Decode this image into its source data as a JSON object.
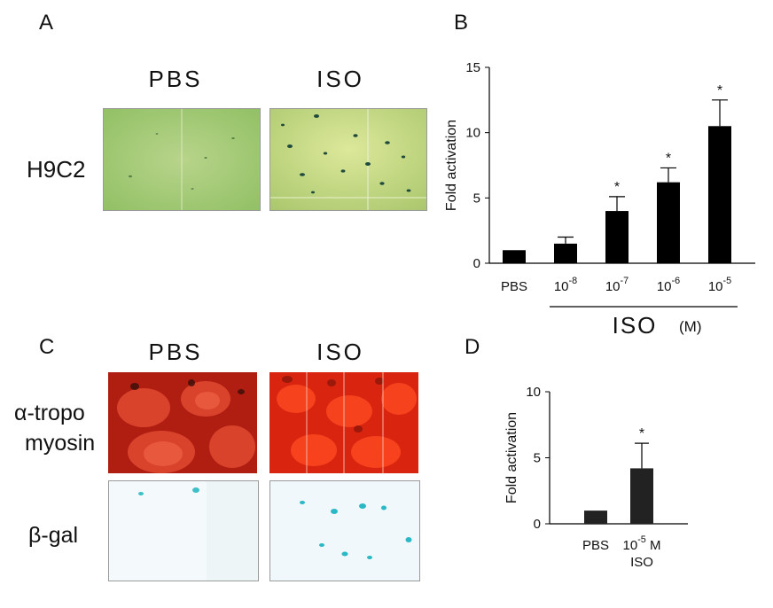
{
  "panels": {
    "A": {
      "letter": "A",
      "columns": [
        "PBS",
        "ISO"
      ],
      "row_label": "H9C2"
    },
    "B": {
      "letter": "B"
    },
    "C": {
      "letter": "C",
      "columns": [
        "PBS",
        "ISO"
      ],
      "row_labels": [
        "α-tropo",
        "myosin",
        "β-gal"
      ]
    },
    "D": {
      "letter": "D"
    }
  },
  "chart_data": [
    {
      "id": "B",
      "type": "bar",
      "ylabel": "Fold activation",
      "ylim": [
        0,
        15
      ],
      "yticks": [
        0,
        5,
        10,
        15
      ],
      "categories": [
        {
          "base": "PBS",
          "exp": ""
        },
        {
          "base": "10",
          "exp": "-8"
        },
        {
          "base": "10",
          "exp": "-7"
        },
        {
          "base": "10",
          "exp": "-6"
        },
        {
          "base": "10",
          "exp": "-5"
        }
      ],
      "values": [
        1.0,
        1.5,
        4.0,
        6.2,
        10.5
      ],
      "errors": [
        0.0,
        0.5,
        1.1,
        1.1,
        2.0
      ],
      "significant": [
        false,
        false,
        true,
        true,
        true
      ],
      "sig_mark": "*",
      "group_label": "ISO",
      "group_unit": "(M)",
      "bar_color": "#000000"
    },
    {
      "id": "D",
      "type": "bar",
      "ylabel": "Fold activation",
      "ylim": [
        0,
        10
      ],
      "yticks": [
        0,
        5,
        10
      ],
      "categories": [
        {
          "base": "PBS",
          "exp": "",
          "line2": ""
        },
        {
          "base": "10",
          "exp": "-5",
          "suffix": " M",
          "line2": "ISO"
        }
      ],
      "values": [
        1.0,
        4.2
      ],
      "errors": [
        0.0,
        1.9
      ],
      "significant": [
        false,
        true
      ],
      "sig_mark": "*",
      "bar_color": "#222222"
    }
  ]
}
